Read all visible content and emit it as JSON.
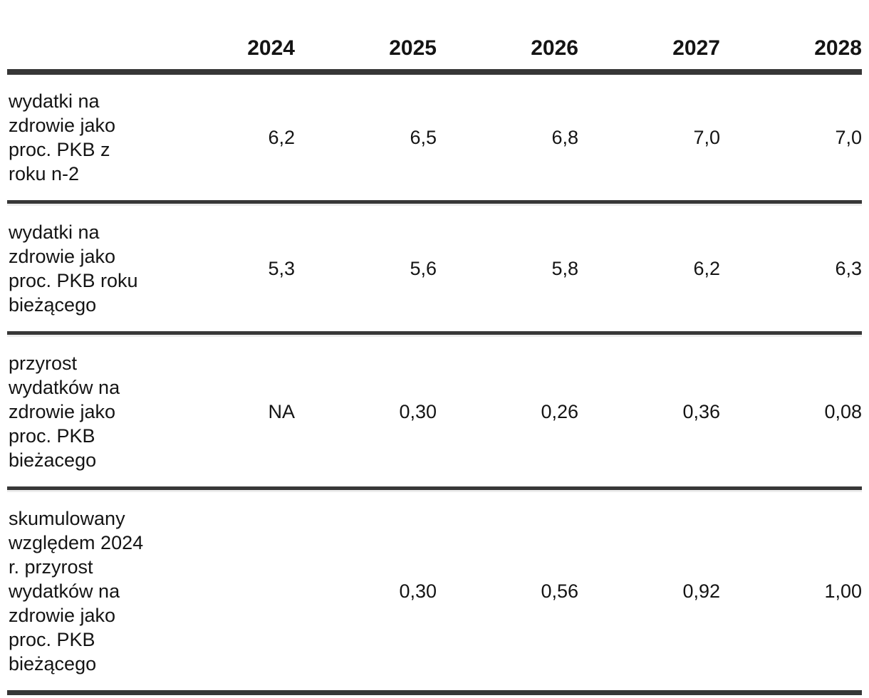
{
  "colors": {
    "text": "#141414",
    "rule_dark": "#373737",
    "rule_light": "#ededed",
    "background": "#ffffff"
  },
  "table": {
    "columns": [
      "2024",
      "2025",
      "2026",
      "2027",
      "2028"
    ],
    "rows": [
      {
        "label": "wydatki na\nzdrowie jako\nproc. PKB z\nroku n-2",
        "values": [
          "6,2",
          "6,5",
          "6,8",
          "7,0",
          "7,0"
        ]
      },
      {
        "label": "wydatki na\nzdrowie jako\nproc. PKB roku\nbieżącego",
        "values": [
          "5,3",
          "5,6",
          "5,8",
          "6,2",
          "6,3"
        ]
      },
      {
        "label": "przyrost\nwydatków na\nzdrowie jako\nproc. PKB\nbieżacego",
        "values": [
          "NA",
          "0,30",
          "0,26",
          "0,36",
          "0,08"
        ]
      },
      {
        "label": "skumulowany\nwzględem 2024\nr. przyrost\nwydatków na\nzdrowie jako\nproc. PKB\nbieżącego",
        "values": [
          "",
          "0,30",
          "0,56",
          "0,92",
          "1,00"
        ]
      }
    ]
  },
  "chart_data": {
    "type": "table",
    "title": "",
    "columns": [
      "",
      "2024",
      "2025",
      "2026",
      "2027",
      "2028"
    ],
    "rows": [
      {
        "label": "wydatki na zdrowie jako proc. PKB z roku n-2",
        "values": [
          "6,2",
          "6,5",
          "6,8",
          "7,0",
          "7,0"
        ]
      },
      {
        "label": "wydatki na zdrowie jako proc. PKB roku bieżącego",
        "values": [
          "5,3",
          "5,6",
          "5,8",
          "6,2",
          "6,3"
        ]
      },
      {
        "label": "przyrost wydatków na zdrowie jako proc. PKB bieżacego",
        "values": [
          "NA",
          "0,30",
          "0,26",
          "0,36",
          "0,08"
        ]
      },
      {
        "label": "skumulowany względem 2024 r. przyrost wydatków na zdrowie jako proc. PKB bieżącego",
        "values": [
          "",
          "0,30",
          "0,56",
          "0,92",
          "1,00"
        ]
      }
    ]
  }
}
